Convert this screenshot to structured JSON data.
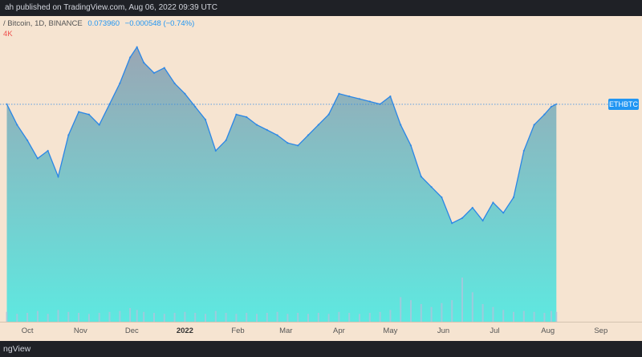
{
  "header": {
    "published_text": "ah published on TradingView.com, Aug 06, 2022 09:39 UTC"
  },
  "legend": {
    "symbol_text": "/ Bitcoin, 1D, BINANCE",
    "price": "0.073960",
    "change": "−0.000548 (−0.74%)",
    "volume_text": "4K"
  },
  "footer": {
    "brand_text": "ngView"
  },
  "colors": {
    "line": "#2a86e6",
    "fill_top": "#9aa6b4",
    "fill_bottom": "#5ee8e0",
    "volume": "#a9c6dc",
    "background": "#f6e4d1",
    "tag": "#2196f3"
  },
  "chart_data": {
    "type": "area",
    "symbol": "ETHBTC",
    "price_tag": "ETHBTC",
    "last_value": 0.07396,
    "x": [
      "2021-09-19",
      "2021-09-25",
      "2021-10-01",
      "2021-10-07",
      "2021-10-13",
      "2021-10-19",
      "2021-10-25",
      "2021-10-31",
      "2021-11-06",
      "2021-11-12",
      "2021-11-18",
      "2021-11-24",
      "2021-11-30",
      "2021-12-04",
      "2021-12-08",
      "2021-12-14",
      "2021-12-20",
      "2021-12-26",
      "2022-01-01",
      "2022-01-07",
      "2022-01-13",
      "2022-01-19",
      "2022-01-25",
      "2022-01-31",
      "2022-02-06",
      "2022-02-12",
      "2022-02-18",
      "2022-02-24",
      "2022-03-02",
      "2022-03-08",
      "2022-03-14",
      "2022-03-20",
      "2022-03-26",
      "2022-04-01",
      "2022-04-07",
      "2022-04-13",
      "2022-04-19",
      "2022-04-25",
      "2022-05-01",
      "2022-05-07",
      "2022-05-13",
      "2022-05-19",
      "2022-05-25",
      "2022-05-31",
      "2022-06-06",
      "2022-06-12",
      "2022-06-18",
      "2022-06-24",
      "2022-06-30",
      "2022-07-06",
      "2022-07-12",
      "2022-07-18",
      "2022-07-24",
      "2022-07-30",
      "2022-08-03",
      "2022-08-06"
    ],
    "values": [
      0.074,
      0.07,
      0.067,
      0.0635,
      0.065,
      0.06,
      0.068,
      0.0725,
      0.072,
      0.07,
      0.074,
      0.078,
      0.083,
      0.085,
      0.082,
      0.08,
      0.081,
      0.078,
      0.076,
      0.0735,
      0.071,
      0.065,
      0.067,
      0.072,
      0.0715,
      0.07,
      0.069,
      0.068,
      0.0665,
      0.066,
      0.068,
      0.07,
      0.072,
      0.076,
      0.0755,
      0.075,
      0.0745,
      0.074,
      0.0755,
      0.07,
      0.066,
      0.06,
      0.058,
      0.056,
      0.051,
      0.052,
      0.054,
      0.0515,
      0.055,
      0.053,
      0.056,
      0.065,
      0.07,
      0.072,
      0.0735,
      0.074
    ],
    "volumes": [
      1,
      0.8,
      0.9,
      1.1,
      0.8,
      1.2,
      1,
      0.9,
      0.8,
      0.9,
      1,
      1.1,
      1.4,
      1.2,
      1,
      0.9,
      0.8,
      0.9,
      1,
      0.9,
      0.8,
      1.1,
      0.9,
      0.8,
      0.9,
      0.8,
      0.9,
      1,
      0.8,
      0.9,
      0.8,
      0.9,
      0.8,
      1,
      0.9,
      0.8,
      0.9,
      1,
      1.2,
      2.5,
      2.2,
      1.8,
      1.5,
      1.9,
      2.2,
      4.5,
      3.0,
      1.8,
      1.5,
      1.2,
      1.0,
      1.1,
      1.0,
      0.9,
      1.1,
      1.0
    ],
    "x_ticks": [
      {
        "label": "Oct",
        "date": "2021-10-01",
        "bold": false
      },
      {
        "label": "Nov",
        "date": "2021-11-01",
        "bold": false
      },
      {
        "label": "Dec",
        "date": "2021-12-01",
        "bold": false
      },
      {
        "label": "2022",
        "date": "2022-01-01",
        "bold": true
      },
      {
        "label": "Feb",
        "date": "2022-02-01",
        "bold": false
      },
      {
        "label": "Mar",
        "date": "2022-03-01",
        "bold": false
      },
      {
        "label": "Apr",
        "date": "2022-04-01",
        "bold": false
      },
      {
        "label": "May",
        "date": "2022-05-01",
        "bold": false
      },
      {
        "label": "Jun",
        "date": "2022-06-01",
        "bold": false
      },
      {
        "label": "Jul",
        "date": "2022-07-01",
        "bold": false
      },
      {
        "label": "Aug",
        "date": "2022-08-01",
        "bold": false
      },
      {
        "label": "Sep",
        "date": "2022-09-01",
        "bold": false
      }
    ],
    "xlim": [
      "2021-09-15",
      "2022-09-25"
    ],
    "ylim": [
      0.034,
      0.091
    ],
    "grid": false,
    "legend_position": "top-left"
  }
}
